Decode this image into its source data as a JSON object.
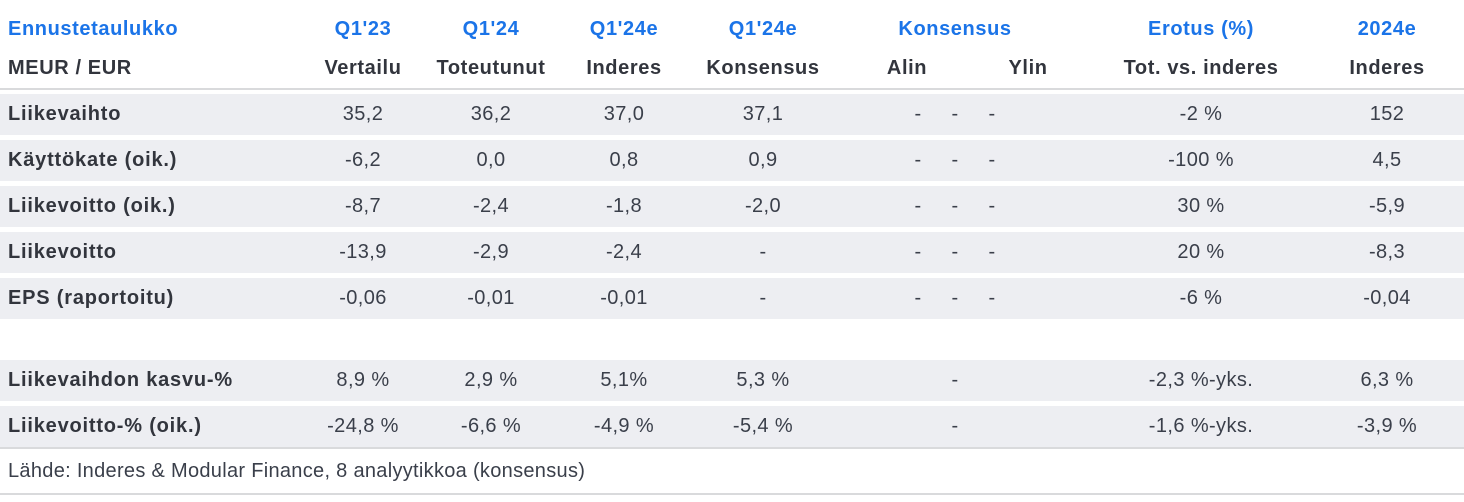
{
  "header": {
    "title": "Ennustetaulukko",
    "unit_label": "MEUR / EUR",
    "groups": {
      "q123": "Q1'23",
      "q124": "Q1'24",
      "q124e_inderes": "Q1'24e",
      "q124e_konsensus": "Q1'24e",
      "konsensus": "Konsensus",
      "erotus": "Erotus (%)",
      "y2024e": "2024e"
    },
    "subcols": {
      "vertailu": "Vertailu",
      "toteutunut": "Toteutunut",
      "inderes": "Inderes",
      "konsensus": "Konsensus",
      "alin": "Alin",
      "ylin": "Ylin",
      "erotus": "Tot. vs. inderes",
      "y2024e": "Inderes"
    }
  },
  "rows": [
    {
      "label": "Liikevaihto",
      "vertailu": "35,2",
      "toteutunut": "36,2",
      "inderes": "37,0",
      "konsensus": "37,1",
      "alin_ylin": "- - -",
      "erotus": "-2 %",
      "y2024": "152"
    },
    {
      "label": "Käyttökate (oik.)",
      "vertailu": "-6,2",
      "toteutunut": "0,0",
      "inderes": "0,8",
      "konsensus": "0,9",
      "alin_ylin": "- - -",
      "erotus": "-100 %",
      "y2024": "4,5"
    },
    {
      "label": "Liikevoitto (oik.)",
      "vertailu": "-8,7",
      "toteutunut": "-2,4",
      "inderes": "-1,8",
      "konsensus": "-2,0",
      "alin_ylin": "- - -",
      "erotus": "30 %",
      "y2024": "-5,9"
    },
    {
      "label": "Liikevoitto",
      "vertailu": "-13,9",
      "toteutunut": "-2,9",
      "inderes": "-2,4",
      "konsensus": "-",
      "alin_ylin": "- - -",
      "erotus": "20 %",
      "y2024": "-8,3"
    },
    {
      "label": "EPS (raportoitu)",
      "vertailu": "-0,06",
      "toteutunut": "-0,01",
      "inderes": "-0,01",
      "konsensus": "-",
      "alin_ylin": "- - -",
      "erotus": "-6 %",
      "y2024": "-0,04"
    },
    {
      "label": "Liikevaihdon kasvu-%",
      "vertailu": "8,9 %",
      "toteutunut": "2,9 %",
      "inderes": "5,1%",
      "konsensus": "5,3 %",
      "alin_ylin": "-",
      "erotus": "-2,3 %-yks.",
      "y2024": "6,3 %"
    },
    {
      "label": "Liikevoitto-% (oik.)",
      "vertailu": "-24,8 %",
      "toteutunut": "-6,6 %",
      "inderes": "-4,9 %",
      "konsensus": "-5,4 %",
      "alin_ylin": "-",
      "erotus": "-1,6 %-yks.",
      "y2024": "-3,9 %"
    }
  ],
  "footer": {
    "source_note": "Lähde: Inderes & Modular Finance, 8 analyytikkoa (konsensus)"
  },
  "colors": {
    "accent_blue": "#1b74e8",
    "row_background": "#edeef2",
    "divider": "#d9dadc",
    "heading_text": "#32353d",
    "value_text": "#3a3f4a"
  }
}
